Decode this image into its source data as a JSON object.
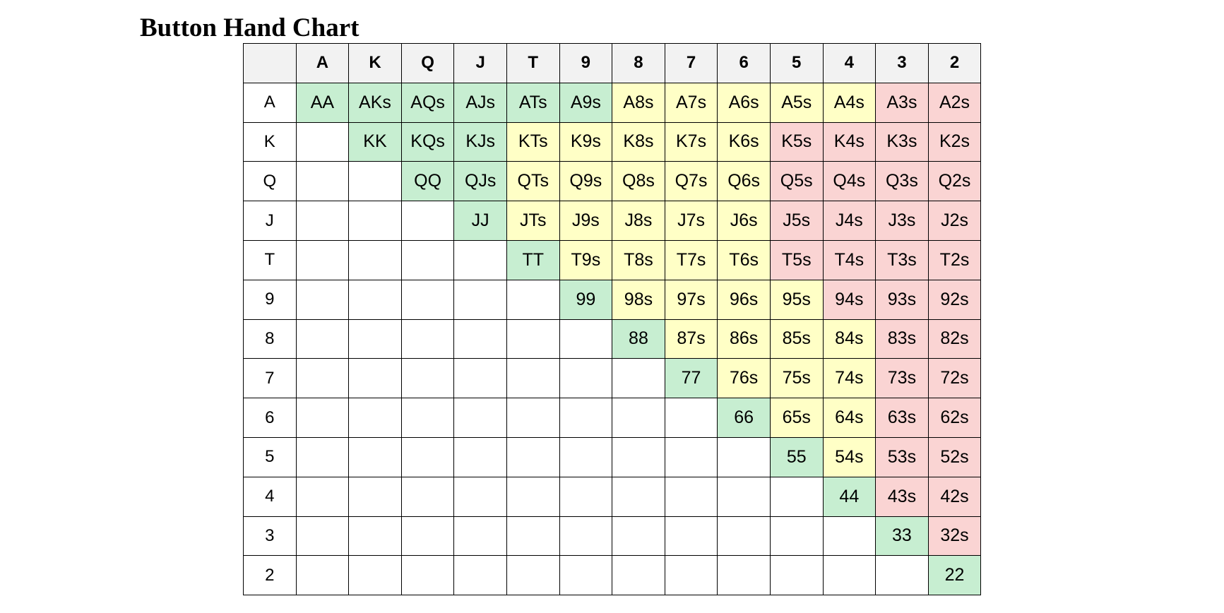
{
  "title": "Button Hand Chart",
  "legend_colors": {
    "green": "#c7eed1",
    "yellow": "#ffffc6",
    "red": "#fad4d3",
    "empty": "#ffffff",
    "header": "#f2f2f2"
  },
  "columns": [
    "A",
    "K",
    "Q",
    "J",
    "T",
    "9",
    "8",
    "7",
    "6",
    "5",
    "4",
    "3",
    "2"
  ],
  "rows": [
    {
      "label": "A",
      "cells": [
        {
          "text": "AA",
          "color": "green"
        },
        {
          "text": "AKs",
          "color": "green"
        },
        {
          "text": "AQs",
          "color": "green"
        },
        {
          "text": "AJs",
          "color": "green"
        },
        {
          "text": "ATs",
          "color": "green"
        },
        {
          "text": "A9s",
          "color": "green"
        },
        {
          "text": "A8s",
          "color": "yellow"
        },
        {
          "text": "A7s",
          "color": "yellow"
        },
        {
          "text": "A6s",
          "color": "yellow"
        },
        {
          "text": "A5s",
          "color": "yellow"
        },
        {
          "text": "A4s",
          "color": "yellow"
        },
        {
          "text": "A3s",
          "color": "red"
        },
        {
          "text": "A2s",
          "color": "red"
        }
      ]
    },
    {
      "label": "K",
      "cells": [
        {
          "text": "",
          "color": "empty"
        },
        {
          "text": "KK",
          "color": "green"
        },
        {
          "text": "KQs",
          "color": "green"
        },
        {
          "text": "KJs",
          "color": "green"
        },
        {
          "text": "KTs",
          "color": "yellow"
        },
        {
          "text": "K9s",
          "color": "yellow"
        },
        {
          "text": "K8s",
          "color": "yellow"
        },
        {
          "text": "K7s",
          "color": "yellow"
        },
        {
          "text": "K6s",
          "color": "yellow"
        },
        {
          "text": "K5s",
          "color": "red"
        },
        {
          "text": "K4s",
          "color": "red"
        },
        {
          "text": "K3s",
          "color": "red"
        },
        {
          "text": "K2s",
          "color": "red"
        }
      ]
    },
    {
      "label": "Q",
      "cells": [
        {
          "text": "",
          "color": "empty"
        },
        {
          "text": "",
          "color": "empty"
        },
        {
          "text": "QQ",
          "color": "green"
        },
        {
          "text": "QJs",
          "color": "green"
        },
        {
          "text": "QTs",
          "color": "yellow"
        },
        {
          "text": "Q9s",
          "color": "yellow"
        },
        {
          "text": "Q8s",
          "color": "yellow"
        },
        {
          "text": "Q7s",
          "color": "yellow"
        },
        {
          "text": "Q6s",
          "color": "yellow"
        },
        {
          "text": "Q5s",
          "color": "red"
        },
        {
          "text": "Q4s",
          "color": "red"
        },
        {
          "text": "Q3s",
          "color": "red"
        },
        {
          "text": "Q2s",
          "color": "red"
        }
      ]
    },
    {
      "label": "J",
      "cells": [
        {
          "text": "",
          "color": "empty"
        },
        {
          "text": "",
          "color": "empty"
        },
        {
          "text": "",
          "color": "empty"
        },
        {
          "text": "JJ",
          "color": "green"
        },
        {
          "text": "JTs",
          "color": "yellow"
        },
        {
          "text": "J9s",
          "color": "yellow"
        },
        {
          "text": "J8s",
          "color": "yellow"
        },
        {
          "text": "J7s",
          "color": "yellow"
        },
        {
          "text": "J6s",
          "color": "yellow"
        },
        {
          "text": "J5s",
          "color": "red"
        },
        {
          "text": "J4s",
          "color": "red"
        },
        {
          "text": "J3s",
          "color": "red"
        },
        {
          "text": "J2s",
          "color": "red"
        }
      ]
    },
    {
      "label": "T",
      "cells": [
        {
          "text": "",
          "color": "empty"
        },
        {
          "text": "",
          "color": "empty"
        },
        {
          "text": "",
          "color": "empty"
        },
        {
          "text": "",
          "color": "empty"
        },
        {
          "text": "TT",
          "color": "green"
        },
        {
          "text": "T9s",
          "color": "yellow"
        },
        {
          "text": "T8s",
          "color": "yellow"
        },
        {
          "text": "T7s",
          "color": "yellow"
        },
        {
          "text": "T6s",
          "color": "yellow"
        },
        {
          "text": "T5s",
          "color": "red"
        },
        {
          "text": "T4s",
          "color": "red"
        },
        {
          "text": "T3s",
          "color": "red"
        },
        {
          "text": "T2s",
          "color": "red"
        }
      ]
    },
    {
      "label": "9",
      "cells": [
        {
          "text": "",
          "color": "empty"
        },
        {
          "text": "",
          "color": "empty"
        },
        {
          "text": "",
          "color": "empty"
        },
        {
          "text": "",
          "color": "empty"
        },
        {
          "text": "",
          "color": "empty"
        },
        {
          "text": "99",
          "color": "green"
        },
        {
          "text": "98s",
          "color": "yellow"
        },
        {
          "text": "97s",
          "color": "yellow"
        },
        {
          "text": "96s",
          "color": "yellow"
        },
        {
          "text": "95s",
          "color": "yellow"
        },
        {
          "text": "94s",
          "color": "red"
        },
        {
          "text": "93s",
          "color": "red"
        },
        {
          "text": "92s",
          "color": "red"
        }
      ]
    },
    {
      "label": "8",
      "cells": [
        {
          "text": "",
          "color": "empty"
        },
        {
          "text": "",
          "color": "empty"
        },
        {
          "text": "",
          "color": "empty"
        },
        {
          "text": "",
          "color": "empty"
        },
        {
          "text": "",
          "color": "empty"
        },
        {
          "text": "",
          "color": "empty"
        },
        {
          "text": "88",
          "color": "green"
        },
        {
          "text": "87s",
          "color": "yellow"
        },
        {
          "text": "86s",
          "color": "yellow"
        },
        {
          "text": "85s",
          "color": "yellow"
        },
        {
          "text": "84s",
          "color": "yellow"
        },
        {
          "text": "83s",
          "color": "red"
        },
        {
          "text": "82s",
          "color": "red"
        }
      ]
    },
    {
      "label": "7",
      "cells": [
        {
          "text": "",
          "color": "empty"
        },
        {
          "text": "",
          "color": "empty"
        },
        {
          "text": "",
          "color": "empty"
        },
        {
          "text": "",
          "color": "empty"
        },
        {
          "text": "",
          "color": "empty"
        },
        {
          "text": "",
          "color": "empty"
        },
        {
          "text": "",
          "color": "empty"
        },
        {
          "text": "77",
          "color": "green"
        },
        {
          "text": "76s",
          "color": "yellow"
        },
        {
          "text": "75s",
          "color": "yellow"
        },
        {
          "text": "74s",
          "color": "yellow"
        },
        {
          "text": "73s",
          "color": "red"
        },
        {
          "text": "72s",
          "color": "red"
        }
      ]
    },
    {
      "label": "6",
      "cells": [
        {
          "text": "",
          "color": "empty"
        },
        {
          "text": "",
          "color": "empty"
        },
        {
          "text": "",
          "color": "empty"
        },
        {
          "text": "",
          "color": "empty"
        },
        {
          "text": "",
          "color": "empty"
        },
        {
          "text": "",
          "color": "empty"
        },
        {
          "text": "",
          "color": "empty"
        },
        {
          "text": "",
          "color": "empty"
        },
        {
          "text": "66",
          "color": "green"
        },
        {
          "text": "65s",
          "color": "yellow"
        },
        {
          "text": "64s",
          "color": "yellow"
        },
        {
          "text": "63s",
          "color": "red"
        },
        {
          "text": "62s",
          "color": "red"
        }
      ]
    },
    {
      "label": "5",
      "cells": [
        {
          "text": "",
          "color": "empty"
        },
        {
          "text": "",
          "color": "empty"
        },
        {
          "text": "",
          "color": "empty"
        },
        {
          "text": "",
          "color": "empty"
        },
        {
          "text": "",
          "color": "empty"
        },
        {
          "text": "",
          "color": "empty"
        },
        {
          "text": "",
          "color": "empty"
        },
        {
          "text": "",
          "color": "empty"
        },
        {
          "text": "",
          "color": "empty"
        },
        {
          "text": "55",
          "color": "green"
        },
        {
          "text": "54s",
          "color": "yellow"
        },
        {
          "text": "53s",
          "color": "red"
        },
        {
          "text": "52s",
          "color": "red"
        }
      ]
    },
    {
      "label": "4",
      "cells": [
        {
          "text": "",
          "color": "empty"
        },
        {
          "text": "",
          "color": "empty"
        },
        {
          "text": "",
          "color": "empty"
        },
        {
          "text": "",
          "color": "empty"
        },
        {
          "text": "",
          "color": "empty"
        },
        {
          "text": "",
          "color": "empty"
        },
        {
          "text": "",
          "color": "empty"
        },
        {
          "text": "",
          "color": "empty"
        },
        {
          "text": "",
          "color": "empty"
        },
        {
          "text": "",
          "color": "empty"
        },
        {
          "text": "44",
          "color": "green"
        },
        {
          "text": "43s",
          "color": "red"
        },
        {
          "text": "42s",
          "color": "red"
        }
      ]
    },
    {
      "label": "3",
      "cells": [
        {
          "text": "",
          "color": "empty"
        },
        {
          "text": "",
          "color": "empty"
        },
        {
          "text": "",
          "color": "empty"
        },
        {
          "text": "",
          "color": "empty"
        },
        {
          "text": "",
          "color": "empty"
        },
        {
          "text": "",
          "color": "empty"
        },
        {
          "text": "",
          "color": "empty"
        },
        {
          "text": "",
          "color": "empty"
        },
        {
          "text": "",
          "color": "empty"
        },
        {
          "text": "",
          "color": "empty"
        },
        {
          "text": "",
          "color": "empty"
        },
        {
          "text": "33",
          "color": "green"
        },
        {
          "text": "32s",
          "color": "red"
        }
      ]
    },
    {
      "label": "2",
      "cells": [
        {
          "text": "",
          "color": "empty"
        },
        {
          "text": "",
          "color": "empty"
        },
        {
          "text": "",
          "color": "empty"
        },
        {
          "text": "",
          "color": "empty"
        },
        {
          "text": "",
          "color": "empty"
        },
        {
          "text": "",
          "color": "empty"
        },
        {
          "text": "",
          "color": "empty"
        },
        {
          "text": "",
          "color": "empty"
        },
        {
          "text": "",
          "color": "empty"
        },
        {
          "text": "",
          "color": "empty"
        },
        {
          "text": "",
          "color": "empty"
        },
        {
          "text": "",
          "color": "empty"
        },
        {
          "text": "22",
          "color": "green"
        }
      ]
    }
  ]
}
